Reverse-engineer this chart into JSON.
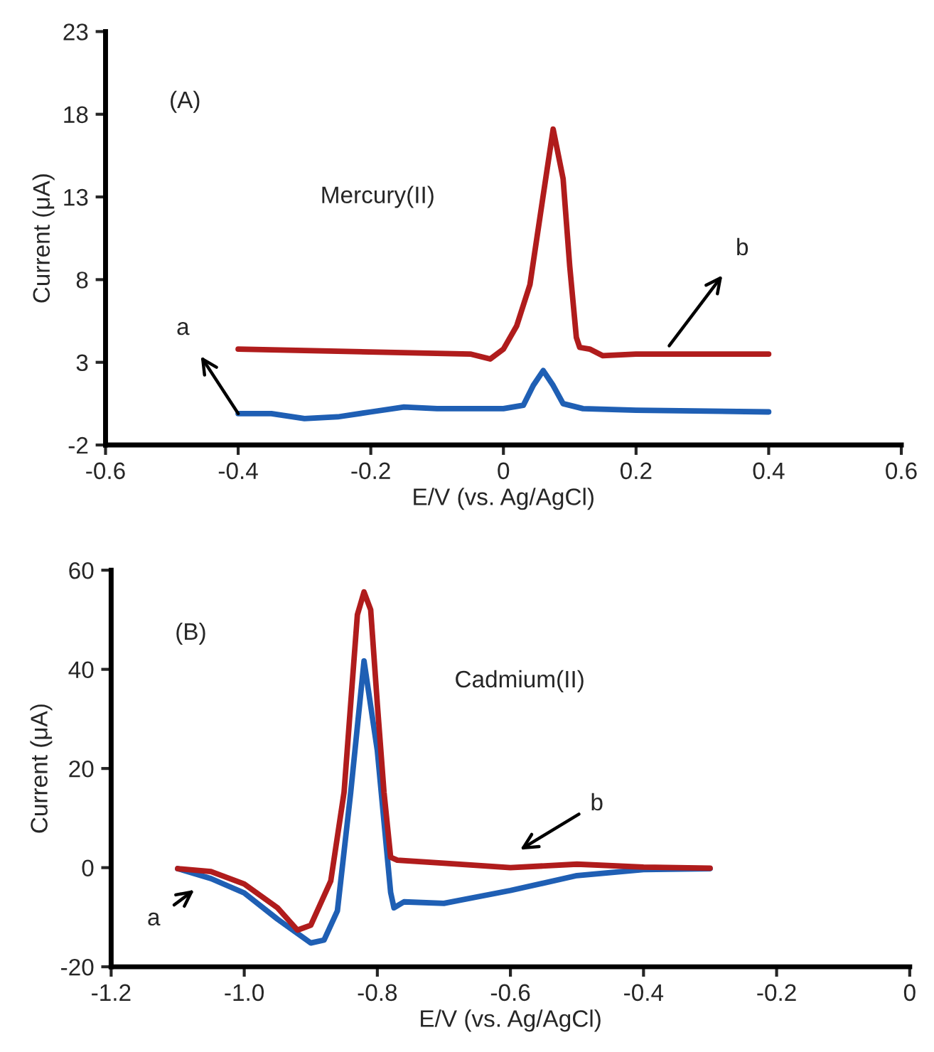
{
  "chart_data": [
    {
      "type": "line",
      "xlabel": "E/V (vs. Ag/AgCl)",
      "ylabel": "Current (μA)",
      "xlim": [
        -0.6,
        0.6
      ],
      "xticks": [
        -0.6,
        -0.4,
        -0.2,
        0,
        0.2,
        0.4,
        0.6
      ],
      "ylim": [
        -2,
        23
      ],
      "yticks": [
        -2,
        3,
        8,
        13,
        18,
        23
      ],
      "line_style": "solid",
      "marker": "none",
      "annotations": [
        "(A)",
        "Mercury(II)",
        {
          "text": "a",
          "x": -0.4,
          "y": -0.1
        },
        {
          "text": "b",
          "x": 0.25,
          "y": 4.0
        }
      ],
      "series": [
        {
          "color": "#1f5fb4",
          "x": [
            -0.4,
            -0.35,
            -0.3,
            -0.25,
            -0.2,
            -0.15,
            -0.1,
            0,
            0.03,
            0.045,
            0.06,
            0.075,
            0.09,
            0.12,
            0.2,
            0.4
          ],
          "values": [
            -0.1,
            -0.1,
            -0.4,
            -0.3,
            0.0,
            0.3,
            0.2,
            0.2,
            0.4,
            1.6,
            2.5,
            1.6,
            0.5,
            0.2,
            0.1,
            0.0
          ]
        },
        {
          "color": "#b01c1c",
          "x": [
            -0.4,
            -0.05,
            -0.02,
            0,
            0.02,
            0.04,
            0.06,
            0.075,
            0.09,
            0.1,
            0.11,
            0.115,
            0.13,
            0.15,
            0.2,
            0.4
          ],
          "values": [
            3.8,
            3.5,
            3.2,
            3.8,
            5.2,
            7.7,
            13.1,
            17.1,
            14.1,
            8.8,
            4.5,
            3.9,
            3.8,
            3.4,
            3.5,
            3.5
          ]
        }
      ]
    },
    {
      "type": "line",
      "xlabel": "E/V (vs. Ag/AgCl)",
      "ylabel": "Current (μA)",
      "xlim": [
        -1.2,
        0
      ],
      "xticks": [
        -1.2,
        {
          "value": -1.0,
          "label": "-1.0"
        },
        -0.8,
        -0.6,
        -0.4,
        -0.2,
        0
      ],
      "ylim": [
        -20,
        60
      ],
      "yticks": [
        -20,
        0,
        20,
        40,
        60
      ],
      "line_style": "solid",
      "marker": "none",
      "annotations": [
        "(B)",
        "Cadmium(II)",
        "a",
        "b"
      ],
      "series": [
        {
          "color": "#1f5fb4",
          "x": [
            -1.1,
            -1.05,
            -1.0,
            -0.95,
            -0.9,
            -0.88,
            -0.86,
            -0.84,
            -0.82,
            -0.8,
            -0.79,
            -0.78,
            -0.775,
            -0.76,
            -0.7,
            -0.6,
            -0.5,
            -0.4,
            -0.3
          ],
          "values": [
            -0.2,
            -2.2,
            -5.1,
            -10.4,
            -15.2,
            -14.6,
            -8.7,
            15.2,
            41.7,
            23.6,
            9.3,
            -5.0,
            -8.1,
            -6.9,
            -7.2,
            -4.6,
            -1.6,
            -0.4,
            -0.2
          ]
        },
        {
          "color": "#b01c1c",
          "x": [
            -1.1,
            -1.05,
            -1.0,
            -0.95,
            -0.92,
            -0.9,
            -0.87,
            -0.85,
            -0.83,
            -0.82,
            -0.81,
            -0.8,
            -0.79,
            -0.78,
            -0.77,
            -0.7,
            -0.6,
            -0.5,
            -0.4,
            -0.3
          ],
          "values": [
            -0.2,
            -0.8,
            -3.3,
            -8.1,
            -12.6,
            -11.6,
            -2.7,
            15.2,
            51.0,
            55.6,
            52.0,
            33.0,
            15.2,
            2.1,
            1.5,
            0.9,
            0.0,
            0.7,
            0.1,
            -0.1
          ]
        }
      ]
    }
  ]
}
